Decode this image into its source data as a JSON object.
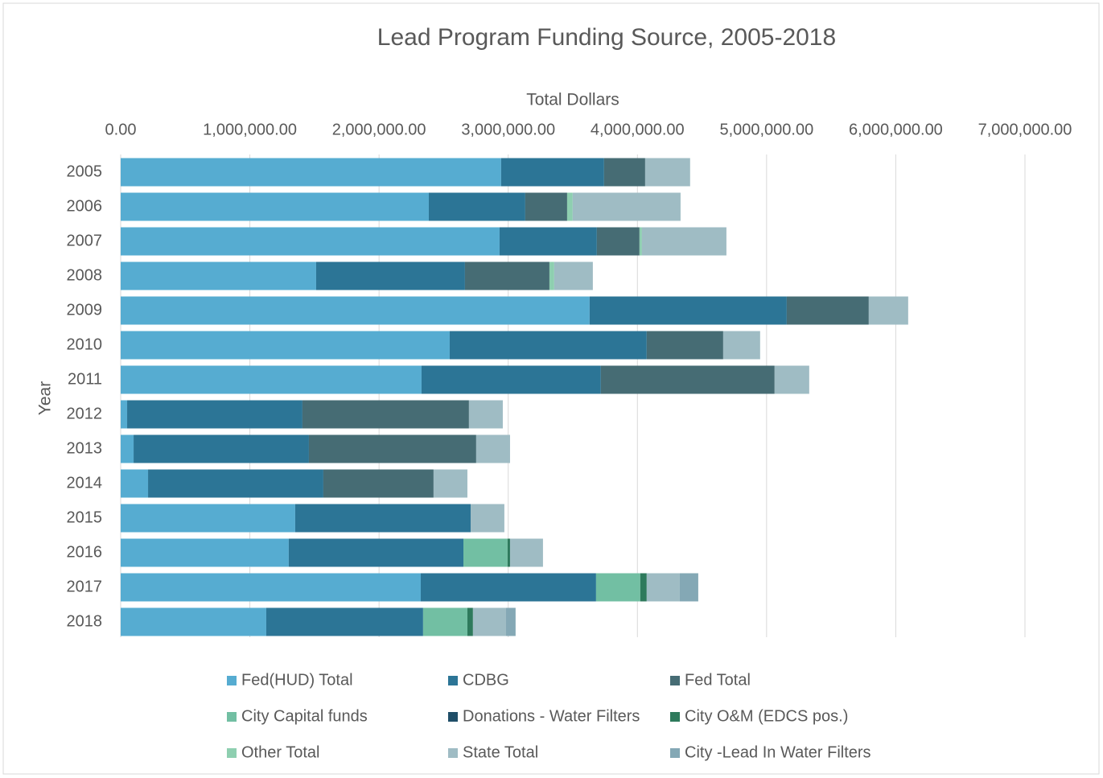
{
  "chart_data": {
    "type": "stacked-barh",
    "title": "Lead Program Funding Source, 2005-2018",
    "x_label": "Total Dollars",
    "y_label": "Year",
    "categories": [
      "2005",
      "2006",
      "2007",
      "2008",
      "2009",
      "2010",
      "2011",
      "2012",
      "2013",
      "2014",
      "2015",
      "2016",
      "2017",
      "2018"
    ],
    "xlim": [
      0,
      7000000
    ],
    "xticks": [
      {
        "value": 0,
        "label": "0.00"
      },
      {
        "value": 1000000,
        "label": "1,000,000.00"
      },
      {
        "value": 2000000,
        "label": "2,000,000.00"
      },
      {
        "value": 3000000,
        "label": "3,000,000.00"
      },
      {
        "value": 4000000,
        "label": "4,000,000.00"
      },
      {
        "value": 5000000,
        "label": "5,000,000.00"
      },
      {
        "value": 6000000,
        "label": "6,000,000.00"
      },
      {
        "value": 7000000,
        "label": "7,000,000.00"
      }
    ],
    "grid": true,
    "legend": "bottom",
    "series": [
      {
        "name": "Fed(HUD) Total",
        "color": "#56acd1",
        "values": [
          2945000,
          2385000,
          2933000,
          1513000,
          3630000,
          2547000,
          2329000,
          50000,
          100000,
          212000,
          1351000,
          1301000,
          2323000,
          1127000
        ]
      },
      {
        "name": "CDBG",
        "color": "#2c7596",
        "values": [
          797000,
          747000,
          753000,
          1152000,
          1526000,
          1525000,
          1388000,
          1357000,
          1357000,
          1357000,
          1358000,
          1352000,
          1357000,
          1214000
        ]
      },
      {
        "name": "Fed Total",
        "color": "#466c74",
        "values": [
          318000,
          324000,
          330000,
          654000,
          635000,
          592000,
          1345000,
          1289000,
          1295000,
          853000,
          0,
          0,
          0,
          0
        ]
      },
      {
        "name": "City Capital funds",
        "color": "#72bfa3",
        "values": [
          0,
          0,
          0,
          0,
          0,
          0,
          0,
          0,
          0,
          0,
          0,
          342000,
          342000,
          343000
        ]
      },
      {
        "name": "Donations - Water Filters",
        "color": "#1f4e68",
        "values": [
          0,
          0,
          0,
          0,
          0,
          0,
          0,
          0,
          0,
          0,
          0,
          0,
          0,
          0
        ]
      },
      {
        "name": "City O&M (EDCS pos.)",
        "color": "#2e7a5c",
        "values": [
          0,
          0,
          0,
          0,
          0,
          0,
          0,
          0,
          0,
          0,
          0,
          19000,
          50000,
          43000
        ]
      },
      {
        "name": "Other Total",
        "color": "#8ecfb0",
        "values": [
          0,
          43000,
          19000,
          37000,
          0,
          0,
          0,
          0,
          0,
          0,
          0,
          0,
          0,
          0
        ]
      },
      {
        "name": "State Total",
        "color": "#9fbcc4",
        "values": [
          348000,
          835000,
          654000,
          299000,
          305000,
          286000,
          268000,
          262000,
          262000,
          262000,
          261000,
          255000,
          256000,
          256000
        ]
      },
      {
        "name": "City -Lead In Water Filters",
        "color": "#84a8b5",
        "values": [
          0,
          0,
          0,
          0,
          0,
          0,
          0,
          0,
          0,
          0,
          0,
          0,
          143000,
          74000
        ]
      }
    ]
  }
}
